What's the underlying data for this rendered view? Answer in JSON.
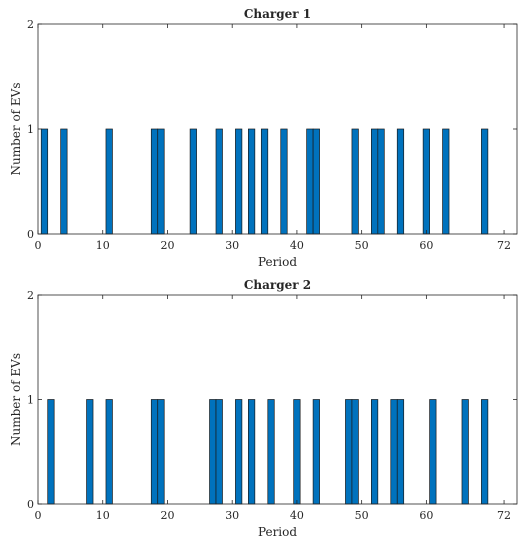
{
  "chart_data": [
    {
      "type": "bar",
      "title": "Charger 1",
      "xlabel": "Period",
      "ylabel": "Number of EVs",
      "xlim": [
        0,
        74
      ],
      "ylim": [
        0,
        2
      ],
      "xticks": [
        0,
        10,
        20,
        30,
        40,
        50,
        60,
        72
      ],
      "yticks": [
        0,
        1,
        2
      ],
      "grid": false,
      "x": [
        1,
        4,
        11,
        18,
        19,
        24,
        28,
        31,
        33,
        35,
        38,
        42,
        43,
        49,
        52,
        53,
        56,
        60,
        63,
        69
      ],
      "values": [
        1,
        1,
        1,
        1,
        1,
        1,
        1,
        1,
        1,
        1,
        1,
        1,
        1,
        1,
        1,
        1,
        1,
        1,
        1,
        1
      ]
    },
    {
      "type": "bar",
      "title": "Charger 2",
      "xlabel": "Period",
      "ylabel": "Number of EVs",
      "xlim": [
        0,
        74
      ],
      "ylim": [
        0,
        2
      ],
      "xticks": [
        0,
        10,
        20,
        30,
        40,
        50,
        60,
        72
      ],
      "yticks": [
        0,
        1,
        2
      ],
      "grid": false,
      "x": [
        2,
        8,
        11,
        18,
        19,
        27,
        28,
        31,
        33,
        36,
        40,
        43,
        48,
        49,
        52,
        55,
        56,
        61,
        66,
        69
      ],
      "values": [
        1,
        1,
        1,
        1,
        1,
        1,
        1,
        1,
        1,
        1,
        1,
        1,
        1,
        1,
        1,
        1,
        1,
        1,
        1,
        1
      ]
    }
  ]
}
